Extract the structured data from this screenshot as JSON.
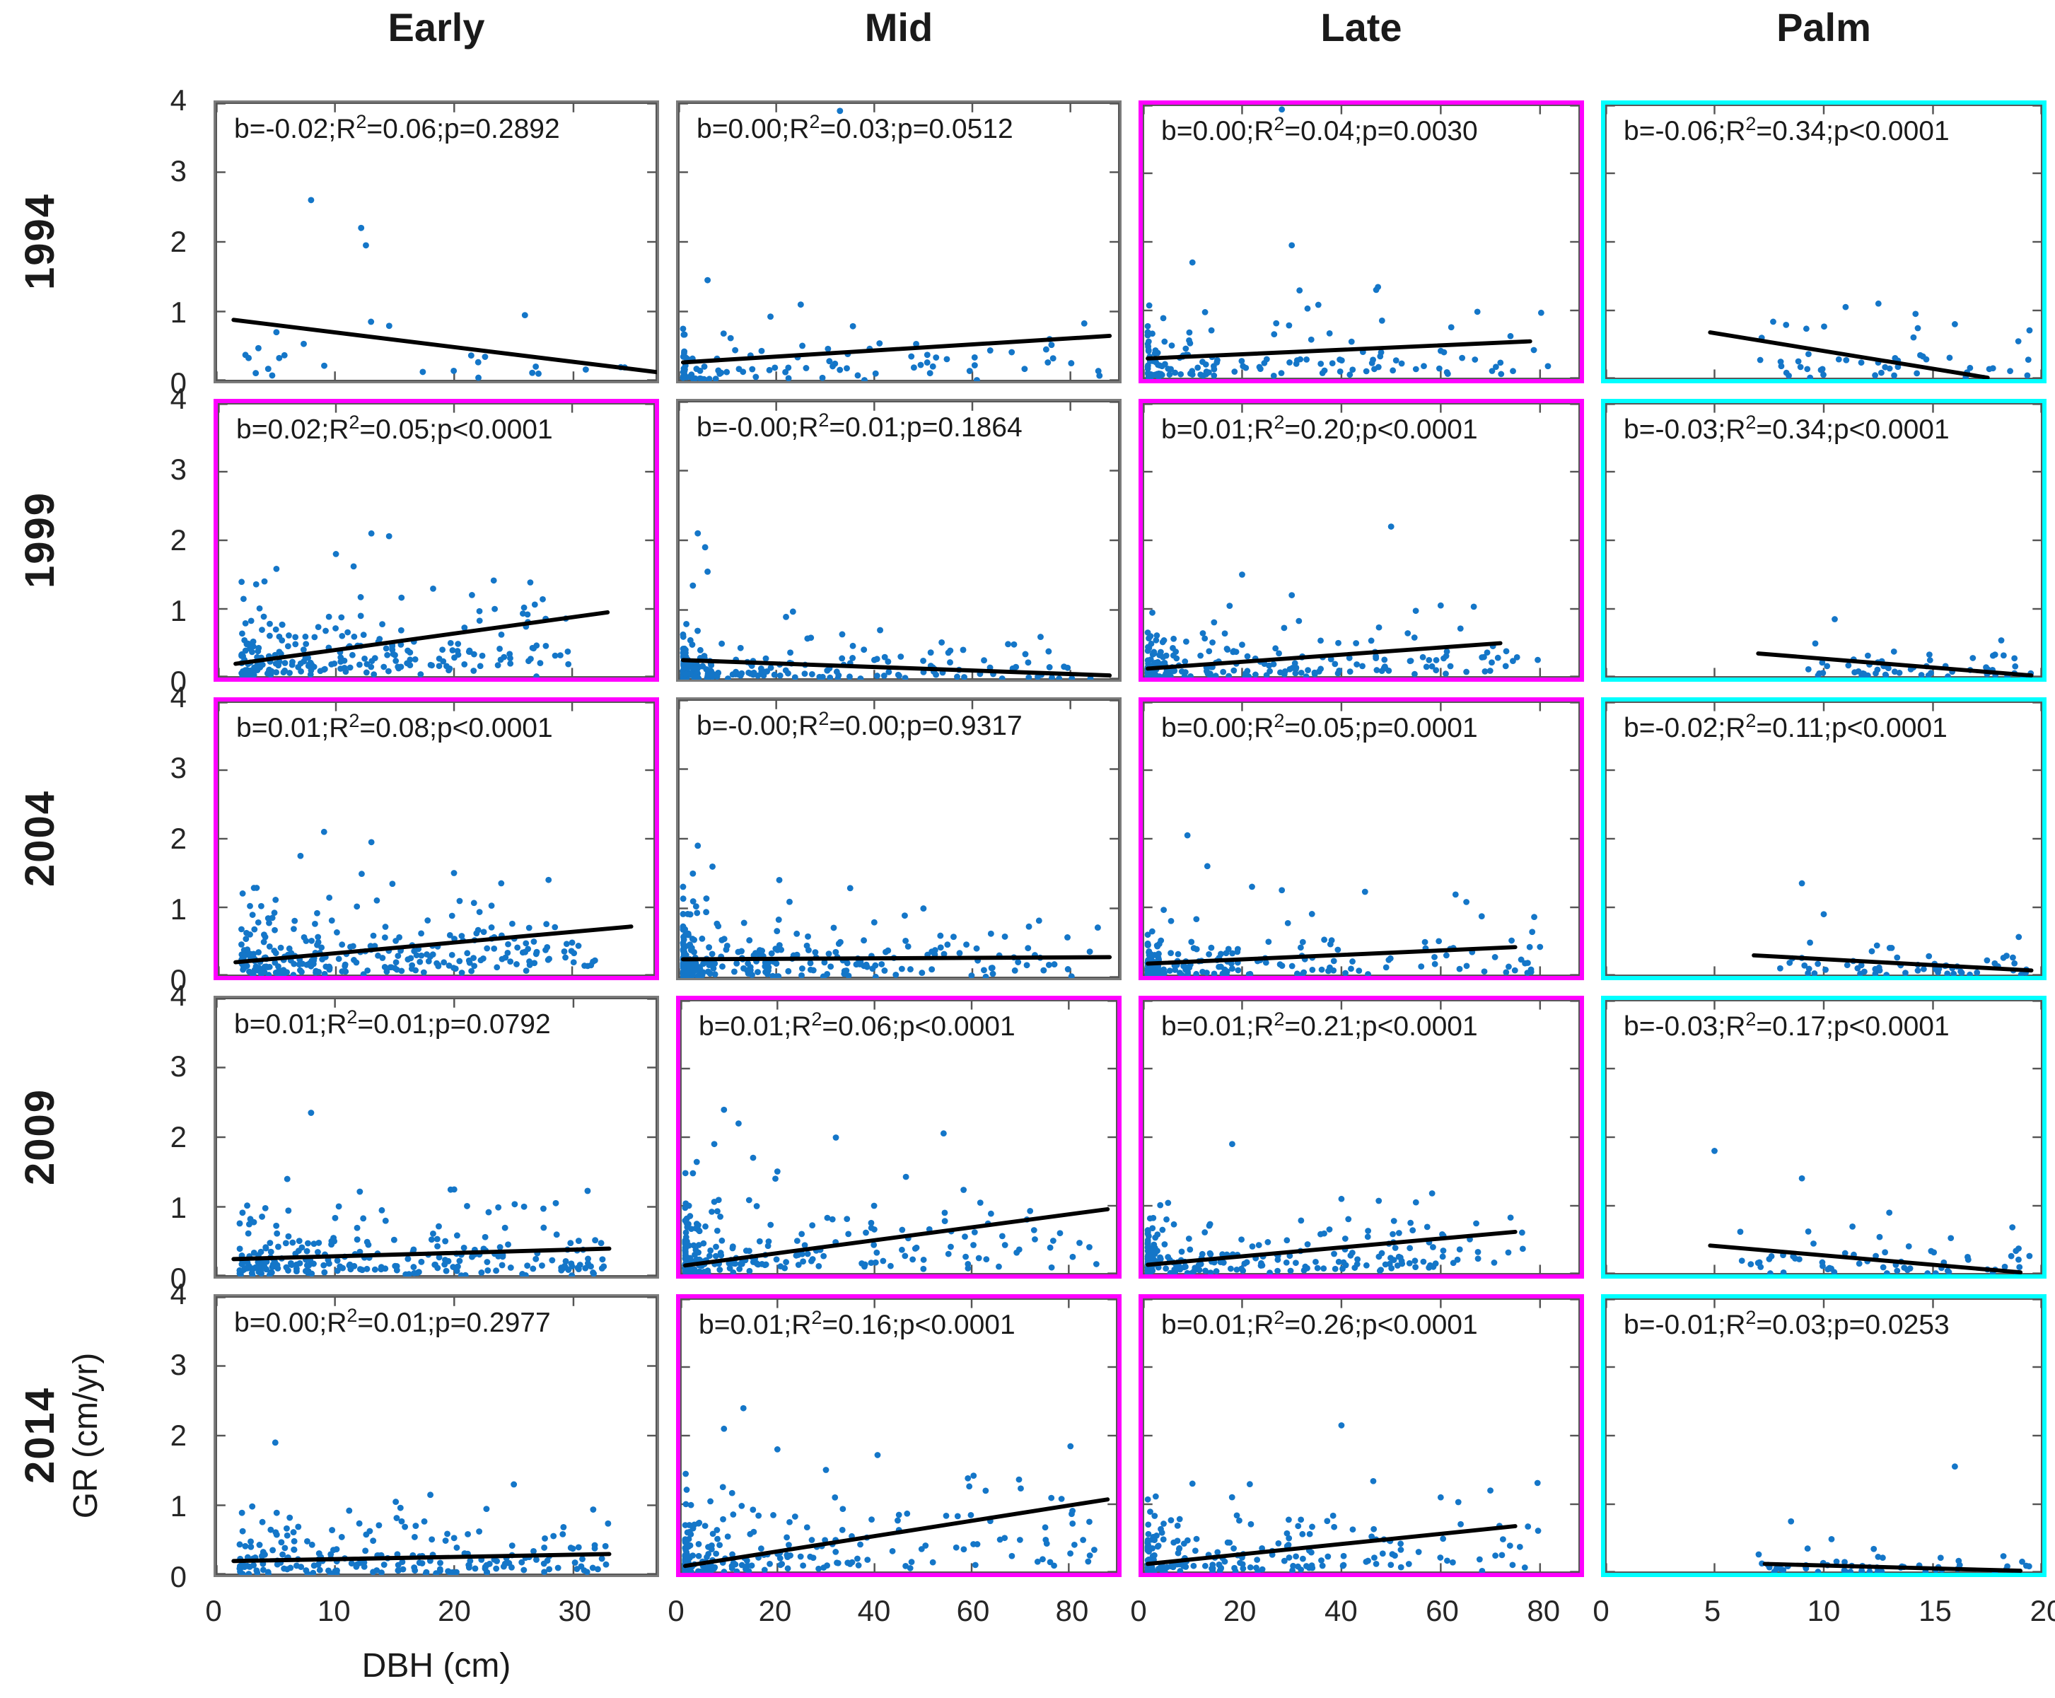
{
  "figure": {
    "x_axis_label": "DBH (cm)",
    "y_axis_label": "GR (cm/yr)",
    "y_max": 4,
    "y_ticks": [
      "4",
      "3",
      "2",
      "1",
      "0"
    ],
    "colors": {
      "point": "#1476C8",
      "trend": "#000000",
      "axis_box": "#555555",
      "frame_gray": "#7b7b7b",
      "frame_magenta": "#ff00ff",
      "frame_cyan": "#00ffff",
      "text": "#1a1a1a",
      "tick_text": "#262626"
    }
  },
  "chart_data": {
    "type": "scatter",
    "layout": "5 rows (years) x 4 columns (groups) of subplots; y = GR (cm/yr) 0-4 in all panels; black OLS regression line in each panel; frame color marks slope sign/significance (magenta = positive significant, cyan = negative significant, gray = not significant)",
    "rows": [
      "1994",
      "1999",
      "2004",
      "2009",
      "2014"
    ],
    "columns": [
      {
        "label": "Early",
        "x_max": 37,
        "x_ticks": [
          "0",
          "10",
          "20",
          "30"
        ],
        "x_tick_values": [
          0,
          10,
          20,
          30
        ]
      },
      {
        "label": "Mid",
        "x_max": 90,
        "x_ticks": [
          "0",
          "20",
          "40",
          "60",
          "80"
        ],
        "x_tick_values": [
          0,
          20,
          40,
          60,
          80
        ]
      },
      {
        "label": "Late",
        "x_max": 88,
        "x_ticks": [
          "0",
          "20",
          "40",
          "60",
          "80"
        ],
        "x_tick_values": [
          0,
          20,
          40,
          60,
          80
        ]
      },
      {
        "label": "Palm",
        "x_max": 20,
        "x_ticks": [
          "0",
          "5",
          "10",
          "15",
          "20"
        ],
        "x_tick_values": [
          0,
          5,
          10,
          15,
          20
        ]
      }
    ],
    "panels": [
      {
        "year": "1994",
        "group": "Early",
        "border": "gray",
        "b": -0.02,
        "r2": 0.06,
        "p": "=0.2892",
        "stats": {
          "pre": "b=-0.02;R",
          "sup": "2",
          "post": "=0.06;p=0.2892"
        },
        "regression": [
          1.5,
          0.88,
          37,
          0.13
        ],
        "cloud": {
          "n": 26,
          "x_min": 2,
          "x_max": 36,
          "skew": 1.2,
          "y_scale": 0.35,
          "y_cap": 1.0,
          "seed": 101
        },
        "outliers": [
          [
            8,
            2.6
          ],
          [
            12.2,
            2.2
          ],
          [
            12.6,
            1.95
          ]
        ]
      },
      {
        "year": "1994",
        "group": "Mid",
        "border": "gray",
        "b": 0.0,
        "r2": 0.03,
        "p": "=0.0512",
        "stats": {
          "pre": "b=0.00;R",
          "sup": "2",
          "post": "=0.03;p=0.0512"
        },
        "regression": [
          1,
          0.27,
          88,
          0.65
        ],
        "cloud": {
          "n": 95,
          "x_min": 1,
          "x_max": 86,
          "skew": 2.8,
          "y_scale": 0.25,
          "y_cap": 1.2,
          "seed": 102
        },
        "outliers": [
          [
            33,
            3.88
          ],
          [
            6,
            1.45
          ],
          [
            25,
            1.1
          ]
        ]
      },
      {
        "year": "1994",
        "group": "Late",
        "border": "magenta",
        "b": 0.0,
        "r2": 0.04,
        "p": "=0.0030",
        "stats": {
          "pre": "b=0.00;R",
          "sup": "2",
          "post": "=0.04;p=0.0030"
        },
        "regression": [
          1,
          0.3,
          78,
          0.55
        ],
        "cloud": {
          "n": 140,
          "x_min": 1,
          "x_max": 82,
          "skew": 2.6,
          "y_scale": 0.3,
          "y_cap": 1.3,
          "seed": 103
        },
        "outliers": [
          [
            28,
            3.93
          ],
          [
            10,
            1.7
          ],
          [
            30,
            1.95
          ],
          [
            47,
            1.3
          ]
        ]
      },
      {
        "year": "1994",
        "group": "Palm",
        "border": "cyan",
        "b": -0.06,
        "r2": 0.34,
        "p": "<0.0001",
        "stats": {
          "pre": "b=-0.06;R",
          "sup": "2",
          "post": "=0.34;p<0.0001"
        },
        "regression": [
          4.8,
          0.68,
          17.5,
          0.02
        ],
        "cloud": {
          "n": 48,
          "x_min": 7,
          "x_max": 19.5,
          "skew": 1.0,
          "y_scale": 0.22,
          "y_cap": 0.8,
          "seed": 104
        },
        "outliers": [
          [
            11,
            1.05
          ],
          [
            12.5,
            1.1
          ],
          [
            14.2,
            0.95
          ],
          [
            16,
            0.8
          ]
        ]
      },
      {
        "year": "1999",
        "group": "Early",
        "border": "magenta",
        "b": 0.02,
        "r2": 0.05,
        "p": "<0.0001",
        "stats": {
          "pre": "b=0.02;R",
          "sup": "2",
          "post": "=0.05;p<0.0001"
        },
        "regression": [
          1.5,
          0.2,
          33,
          0.95
        ],
        "cloud": {
          "n": 230,
          "x_min": 2,
          "x_max": 30,
          "skew": 1.6,
          "y_scale": 0.33,
          "y_cap": 1.6,
          "seed": 105
        },
        "outliers": [
          [
            13,
            2.1
          ],
          [
            14.5,
            2.06
          ],
          [
            10,
            1.8
          ],
          [
            11.5,
            1.62
          ]
        ]
      },
      {
        "year": "1999",
        "group": "Mid",
        "border": "gray",
        "b": -0.0,
        "r2": 0.01,
        "p": "=0.1864",
        "stats": {
          "pre": "b=-0.00;R",
          "sup": "2",
          "post": "=0.01;p=0.1864"
        },
        "regression": [
          1,
          0.28,
          88,
          0.06
        ],
        "cloud": {
          "n": 210,
          "x_min": 1,
          "x_max": 86,
          "skew": 3.2,
          "y_scale": 0.2,
          "y_cap": 1.1,
          "seed": 106
        },
        "outliers": [
          [
            4,
            2.1
          ],
          [
            5.5,
            1.9
          ],
          [
            6,
            1.55
          ],
          [
            3,
            1.35
          ],
          [
            22,
            0.9
          ]
        ]
      },
      {
        "year": "1999",
        "group": "Late",
        "border": "magenta",
        "b": 0.01,
        "r2": 0.2,
        "p": "<0.0001",
        "stats": {
          "pre": "b=0.01;R",
          "sup": "2",
          "post": "=0.20;p<0.0001"
        },
        "regression": [
          1,
          0.13,
          72,
          0.5
        ],
        "cloud": {
          "n": 210,
          "x_min": 1,
          "x_max": 80,
          "skew": 2.6,
          "y_scale": 0.22,
          "y_cap": 1.1,
          "seed": 107
        },
        "outliers": [
          [
            50,
            2.2
          ],
          [
            20,
            1.5
          ],
          [
            30,
            1.2
          ],
          [
            60,
            1.05
          ]
        ]
      },
      {
        "year": "1999",
        "group": "Palm",
        "border": "cyan",
        "b": -0.03,
        "r2": 0.34,
        "p": "<0.0001",
        "stats": {
          "pre": "b=-0.03;R",
          "sup": "2",
          "post": "=0.34;p<0.0001"
        },
        "regression": [
          7,
          0.35,
          19.5,
          0.03
        ],
        "cloud": {
          "n": 60,
          "x_min": 9,
          "x_max": 19.5,
          "skew": 1.0,
          "y_scale": 0.15,
          "y_cap": 0.6,
          "seed": 108
        },
        "outliers": [
          [
            10.5,
            0.85
          ]
        ]
      },
      {
        "year": "2004",
        "group": "Early",
        "border": "magenta",
        "b": 0.01,
        "r2": 0.08,
        "p": "<0.0001",
        "stats": {
          "pre": "b=0.01;R",
          "sup": "2",
          "post": "=0.08;p<0.0001"
        },
        "regression": [
          1.5,
          0.2,
          35,
          0.72
        ],
        "cloud": {
          "n": 270,
          "x_min": 2,
          "x_max": 32,
          "skew": 1.7,
          "y_scale": 0.33,
          "y_cap": 1.5,
          "seed": 109
        },
        "outliers": [
          [
            9,
            2.1
          ],
          [
            13,
            1.95
          ],
          [
            7,
            1.75
          ],
          [
            20,
            1.5
          ],
          [
            28,
            1.4
          ],
          [
            24,
            1.35
          ]
        ]
      },
      {
        "year": "2004",
        "group": "Mid",
        "border": "gray",
        "b": -0.0,
        "r2": 0.0,
        "p": "=0.9317",
        "stats": {
          "pre": "b=-0.00;R",
          "sup": "2",
          "post": "=0.00;p=0.9317"
        },
        "regression": [
          1,
          0.27,
          88,
          0.3
        ],
        "cloud": {
          "n": 270,
          "x_min": 1,
          "x_max": 86,
          "skew": 3.4,
          "y_scale": 0.3,
          "y_cap": 1.5,
          "seed": 110
        },
        "outliers": [
          [
            4,
            1.9
          ],
          [
            7,
            1.6
          ],
          [
            3,
            1.5
          ],
          [
            40,
            0.8
          ]
        ]
      },
      {
        "year": "2004",
        "group": "Late",
        "border": "magenta",
        "b": 0.0,
        "r2": 0.05,
        "p": "=0.0001",
        "stats": {
          "pre": "b=0.00;R",
          "sup": "2",
          "post": "=0.05;p=0.0001"
        },
        "regression": [
          1,
          0.18,
          75,
          0.42
        ],
        "cloud": {
          "n": 190,
          "x_min": 1,
          "x_max": 80,
          "skew": 2.7,
          "y_scale": 0.25,
          "y_cap": 1.2,
          "seed": 111
        },
        "outliers": [
          [
            9,
            2.05
          ],
          [
            13,
            1.6
          ],
          [
            22,
            1.3
          ],
          [
            28,
            1.25
          ]
        ]
      },
      {
        "year": "2004",
        "group": "Palm",
        "border": "cyan",
        "b": -0.02,
        "r2": 0.11,
        "p": "<0.0001",
        "stats": {
          "pre": "b=-0.02;R",
          "sup": "2",
          "post": "=0.11;p<0.0001"
        },
        "regression": [
          6.8,
          0.3,
          19.5,
          0.08
        ],
        "cloud": {
          "n": 60,
          "x_min": 8,
          "x_max": 19.5,
          "skew": 1.0,
          "y_scale": 0.16,
          "y_cap": 0.7,
          "seed": 112
        },
        "outliers": [
          [
            9,
            1.35
          ],
          [
            10,
            0.9
          ]
        ]
      },
      {
        "year": "2009",
        "group": "Early",
        "border": "gray",
        "b": 0.01,
        "r2": 0.01,
        "p": "=0.0792",
        "stats": {
          "pre": "b=0.01;R",
          "sup": "2",
          "post": "=0.01;p=0.0792"
        },
        "regression": [
          1.5,
          0.25,
          33,
          0.4
        ],
        "cloud": {
          "n": 240,
          "x_min": 2,
          "x_max": 33,
          "skew": 1.5,
          "y_scale": 0.3,
          "y_cap": 1.2,
          "seed": 113
        },
        "outliers": [
          [
            8,
            2.35
          ],
          [
            6,
            1.4
          ],
          [
            20,
            1.25
          ]
        ]
      },
      {
        "year": "2009",
        "group": "Mid",
        "border": "magenta",
        "b": 0.01,
        "r2": 0.06,
        "p": "<0.0001",
        "stats": {
          "pre": "b=0.01;R",
          "sup": "2",
          "post": "=0.06;p<0.0001"
        },
        "regression": [
          1,
          0.13,
          88,
          0.95
        ],
        "cloud": {
          "n": 230,
          "x_min": 1,
          "x_max": 86,
          "skew": 3.0,
          "y_scale": 0.4,
          "y_cap": 2.0,
          "seed": 114
        },
        "outliers": [
          [
            9,
            2.4
          ],
          [
            12,
            2.2
          ],
          [
            7,
            1.9
          ],
          [
            15,
            1.7
          ],
          [
            20,
            1.5
          ]
        ]
      },
      {
        "year": "2009",
        "group": "Late",
        "border": "magenta",
        "b": 0.01,
        "r2": 0.21,
        "p": "<0.0001",
        "stats": {
          "pre": "b=0.01;R",
          "sup": "2",
          "post": "=0.21;p<0.0001"
        },
        "regression": [
          1,
          0.14,
          75,
          0.62
        ],
        "cloud": {
          "n": 210,
          "x_min": 1,
          "x_max": 78,
          "skew": 2.6,
          "y_scale": 0.28,
          "y_cap": 1.2,
          "seed": 115
        },
        "outliers": [
          [
            18,
            1.9
          ],
          [
            40,
            1.1
          ],
          [
            55,
            1.05
          ]
        ]
      },
      {
        "year": "2009",
        "group": "Palm",
        "border": "cyan",
        "b": -0.03,
        "r2": 0.17,
        "p": "<0.0001",
        "stats": {
          "pre": "b=-0.03;R",
          "sup": "2",
          "post": "=0.17;p<0.0001"
        },
        "regression": [
          4.8,
          0.42,
          19,
          0.03
        ],
        "cloud": {
          "n": 62,
          "x_min": 6,
          "x_max": 19.5,
          "skew": 1.0,
          "y_scale": 0.18,
          "y_cap": 0.8,
          "seed": 116
        },
        "outliers": [
          [
            5,
            1.8
          ],
          [
            9,
            1.4
          ],
          [
            13,
            0.9
          ]
        ]
      },
      {
        "year": "2014",
        "group": "Early",
        "border": "gray",
        "b": 0.0,
        "r2": 0.01,
        "p": "=0.2977",
        "stats": {
          "pre": "b=0.00;R",
          "sup": "2",
          "post": "=0.01;p=0.2977"
        },
        "regression": [
          1.5,
          0.2,
          33,
          0.3
        ],
        "cloud": {
          "n": 210,
          "x_min": 2,
          "x_max": 33,
          "skew": 1.5,
          "y_scale": 0.28,
          "y_cap": 1.1,
          "seed": 117
        },
        "outliers": [
          [
            5,
            1.9
          ],
          [
            25,
            1.3
          ],
          [
            18,
            1.15
          ]
        ]
      },
      {
        "year": "2014",
        "group": "Mid",
        "border": "magenta",
        "b": 0.01,
        "r2": 0.16,
        "p": "<0.0001",
        "stats": {
          "pre": "b=0.01;R",
          "sup": "2",
          "post": "=0.16;p<0.0001"
        },
        "regression": [
          1,
          0.1,
          88,
          1.07
        ],
        "cloud": {
          "n": 220,
          "x_min": 1,
          "x_max": 86,
          "skew": 2.8,
          "y_scale": 0.38,
          "y_cap": 1.7,
          "seed": 118
        },
        "outliers": [
          [
            13,
            2.4
          ],
          [
            9,
            2.1
          ],
          [
            20,
            1.8
          ],
          [
            30,
            1.5
          ]
        ]
      },
      {
        "year": "2014",
        "group": "Late",
        "border": "magenta",
        "b": 0.01,
        "r2": 0.26,
        "p": "<0.0001",
        "stats": {
          "pre": "b=0.01;R",
          "sup": "2",
          "post": "=0.26;p<0.0001"
        },
        "regression": [
          1,
          0.13,
          75,
          0.68
        ],
        "cloud": {
          "n": 210,
          "x_min": 1,
          "x_max": 80,
          "skew": 2.6,
          "y_scale": 0.28,
          "y_cap": 1.3,
          "seed": 119
        },
        "outliers": [
          [
            40,
            2.15
          ],
          [
            10,
            1.3
          ],
          [
            70,
            1.2
          ],
          [
            60,
            1.1
          ]
        ]
      },
      {
        "year": "2014",
        "group": "Palm",
        "border": "cyan",
        "b": -0.01,
        "r2": 0.03,
        "p": "=0.0253",
        "stats": {
          "pre": "b=-0.01;R",
          "sup": "2",
          "post": "=0.03;p=0.0253"
        },
        "regression": [
          7.3,
          0.13,
          19,
          0.03
        ],
        "cloud": {
          "n": 55,
          "x_min": 7,
          "x_max": 19.5,
          "skew": 1.0,
          "y_scale": 0.12,
          "y_cap": 0.55,
          "seed": 120
        },
        "outliers": [
          [
            16,
            1.55
          ],
          [
            8.5,
            0.75
          ]
        ]
      }
    ]
  }
}
